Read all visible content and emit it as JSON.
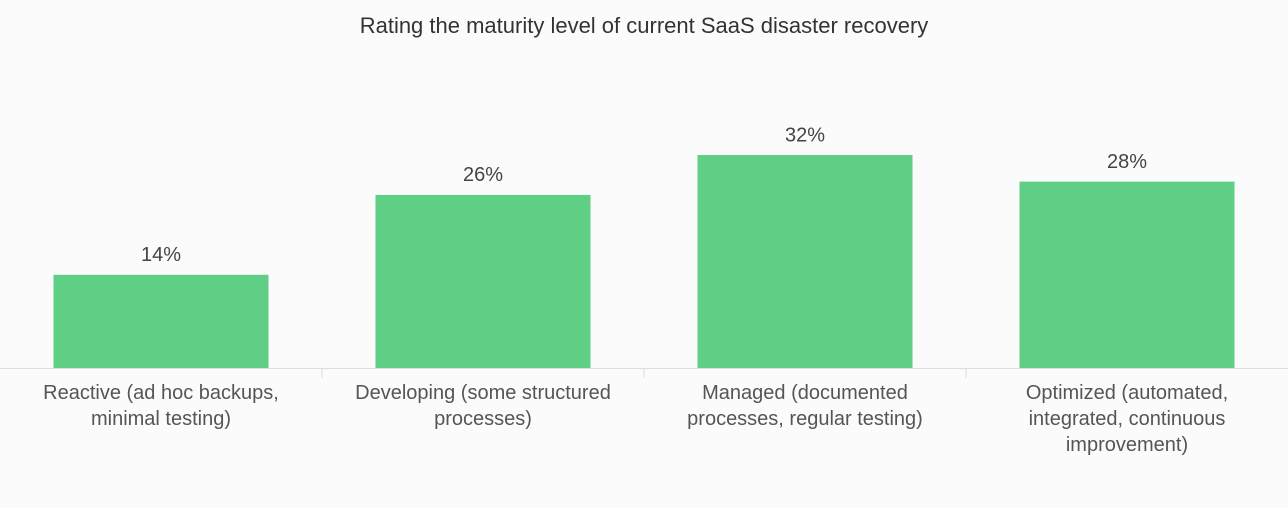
{
  "chart_data": {
    "type": "bar",
    "title": "Rating the maturity level of current SaaS disaster recovery",
    "categories": [
      "Reactive (ad hoc backups, minimal testing)",
      "Developing (some structured processes)",
      "Managed (documented processes, regular testing)",
      "Optimized (automated, integrated, continuous improvement)"
    ],
    "values": [
      14,
      26,
      32,
      28
    ],
    "value_labels": [
      "14%",
      "26%",
      "32%",
      "28%"
    ],
    "color": "#5fcf86"
  }
}
